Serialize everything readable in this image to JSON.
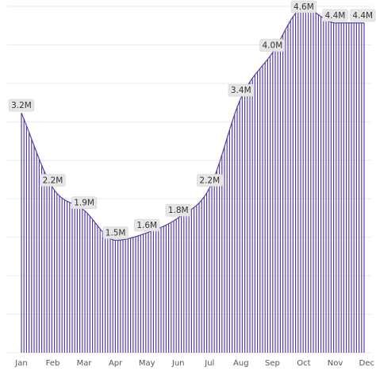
{
  "chart_data": {
    "type": "bar",
    "x": [
      "Jan",
      "Feb",
      "Mar",
      "Apr",
      "May",
      "Jun",
      "Jul",
      "Aug",
      "Sep",
      "Oct",
      "Nov",
      "Dec"
    ],
    "values": [
      3.2,
      2.2,
      1.9,
      1.5,
      1.6,
      1.8,
      2.2,
      3.4,
      4.0,
      4.6,
      4.4,
      4.4
    ],
    "value_labels": [
      "3.2M",
      "2.2M",
      "1.9M",
      "1.5M",
      "1.6M",
      "1.8M",
      "2.2M",
      "3.4M",
      "4.0M",
      "4.6M",
      "4.4M",
      "4.4M"
    ],
    "title": "",
    "xlabel": "",
    "ylabel": "",
    "ylim": [
      0,
      4.6
    ],
    "grid": true,
    "legend": "none",
    "colors": {
      "bars": "#5b3fa8",
      "labels_background": "#e6e6e6",
      "grid": "#ebebeb"
    }
  }
}
